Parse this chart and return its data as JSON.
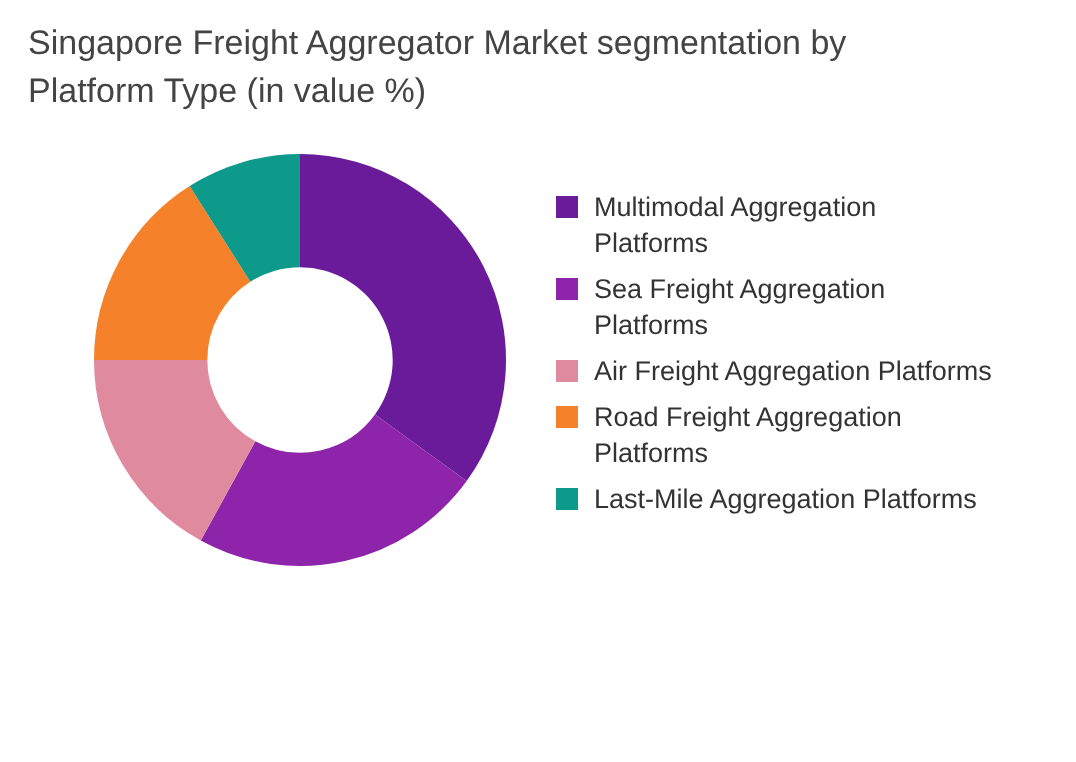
{
  "chart_data": {
    "type": "donut",
    "title": "Singapore Freight Aggregator Market segmentation by Platform Type (in value %)",
    "categories": [
      "Multimodal Aggregation Platforms",
      "Sea Freight Aggregation Platforms",
      "Air Freight Aggregation Platforms",
      "Road Freight Aggregation Platforms",
      "Last-Mile Aggregation Platforms"
    ],
    "values": [
      35,
      23,
      17,
      16,
      9
    ],
    "colors": [
      "#6a1b9a",
      "#8e24aa",
      "#e08aa0",
      "#f5822a",
      "#0e9a8a"
    ],
    "legend": "right"
  }
}
